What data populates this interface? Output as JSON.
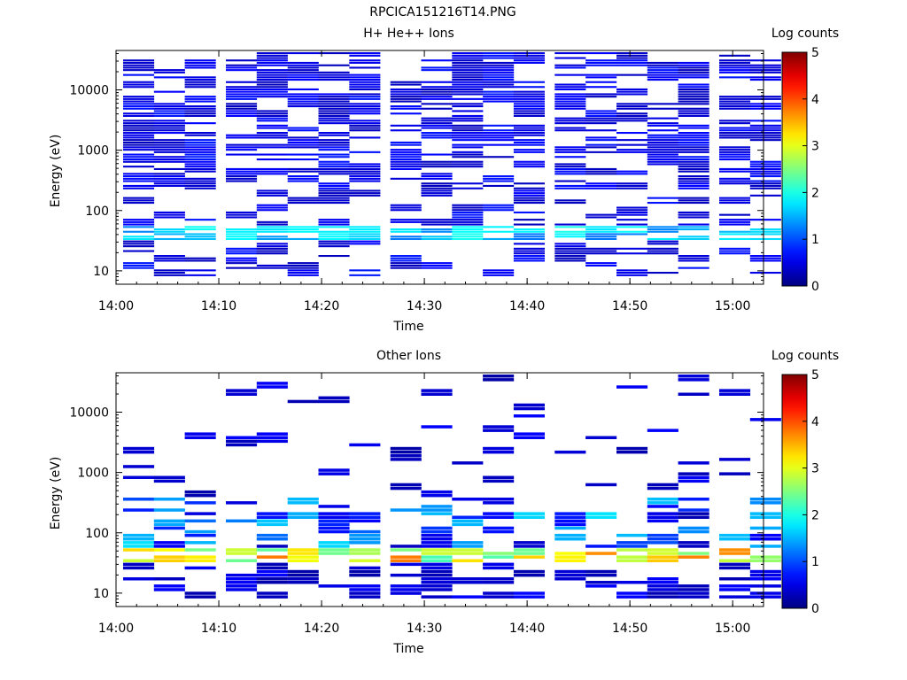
{
  "figure": {
    "filename": "RPCICA151216T14.PNG"
  },
  "chart_data": [
    {
      "type": "heatmap",
      "title": "H+ He++ Ions",
      "xlabel": "Time",
      "ylabel": "Energy (eV)",
      "yscale": "log",
      "ylim": [
        6,
        45000
      ],
      "xlim": [
        "14:00",
        "15:03"
      ],
      "xticks": [
        "14:00",
        "14:10",
        "14:20",
        "14:30",
        "14:40",
        "14:50",
        "15:00"
      ],
      "yticks": [
        "10",
        "100",
        "1000",
        "10000"
      ],
      "colorbar": {
        "label": "Log counts",
        "ticks": [
          "0",
          "1",
          "2",
          "3",
          "4",
          "5"
        ],
        "range": [
          0,
          5
        ]
      },
      "time_bins": [
        "14:00",
        "14:03",
        "14:06",
        "14:10",
        "14:13",
        "14:16",
        "14:19",
        "14:22",
        "14:26",
        "14:29",
        "14:32",
        "14:35",
        "14:38",
        "14:42",
        "14:45",
        "14:48",
        "14:51",
        "14:54",
        "14:58",
        "15:01"
      ],
      "dominant_band": {
        "energy_eV": [
          30,
          60
        ],
        "peak_log_counts": 2.0
      },
      "background_log_counts": 0.3
    },
    {
      "type": "heatmap",
      "title": "Other Ions",
      "xlabel": "Time",
      "ylabel": "Energy (eV)",
      "yscale": "log",
      "ylim": [
        6,
        45000
      ],
      "xlim": [
        "14:00",
        "15:03"
      ],
      "xticks": [
        "14:00",
        "14:10",
        "14:20",
        "14:30",
        "14:40",
        "14:50",
        "15:00"
      ],
      "yticks": [
        "10",
        "100",
        "1000",
        "10000"
      ],
      "colorbar": {
        "label": "Log counts",
        "ticks": [
          "0",
          "1",
          "2",
          "3",
          "4",
          "5"
        ],
        "range": [
          0,
          5
        ]
      },
      "time_bins": [
        "14:00",
        "14:03",
        "14:06",
        "14:10",
        "14:13",
        "14:16",
        "14:19",
        "14:22",
        "14:26",
        "14:29",
        "14:32",
        "14:35",
        "14:38",
        "14:42",
        "14:45",
        "14:48",
        "14:51",
        "14:54",
        "14:58",
        "15:01"
      ],
      "dominant_band": {
        "energy_eV": [
          28,
          55
        ],
        "peak_log_counts": 3.8
      },
      "background_log_counts": 0.2
    }
  ]
}
